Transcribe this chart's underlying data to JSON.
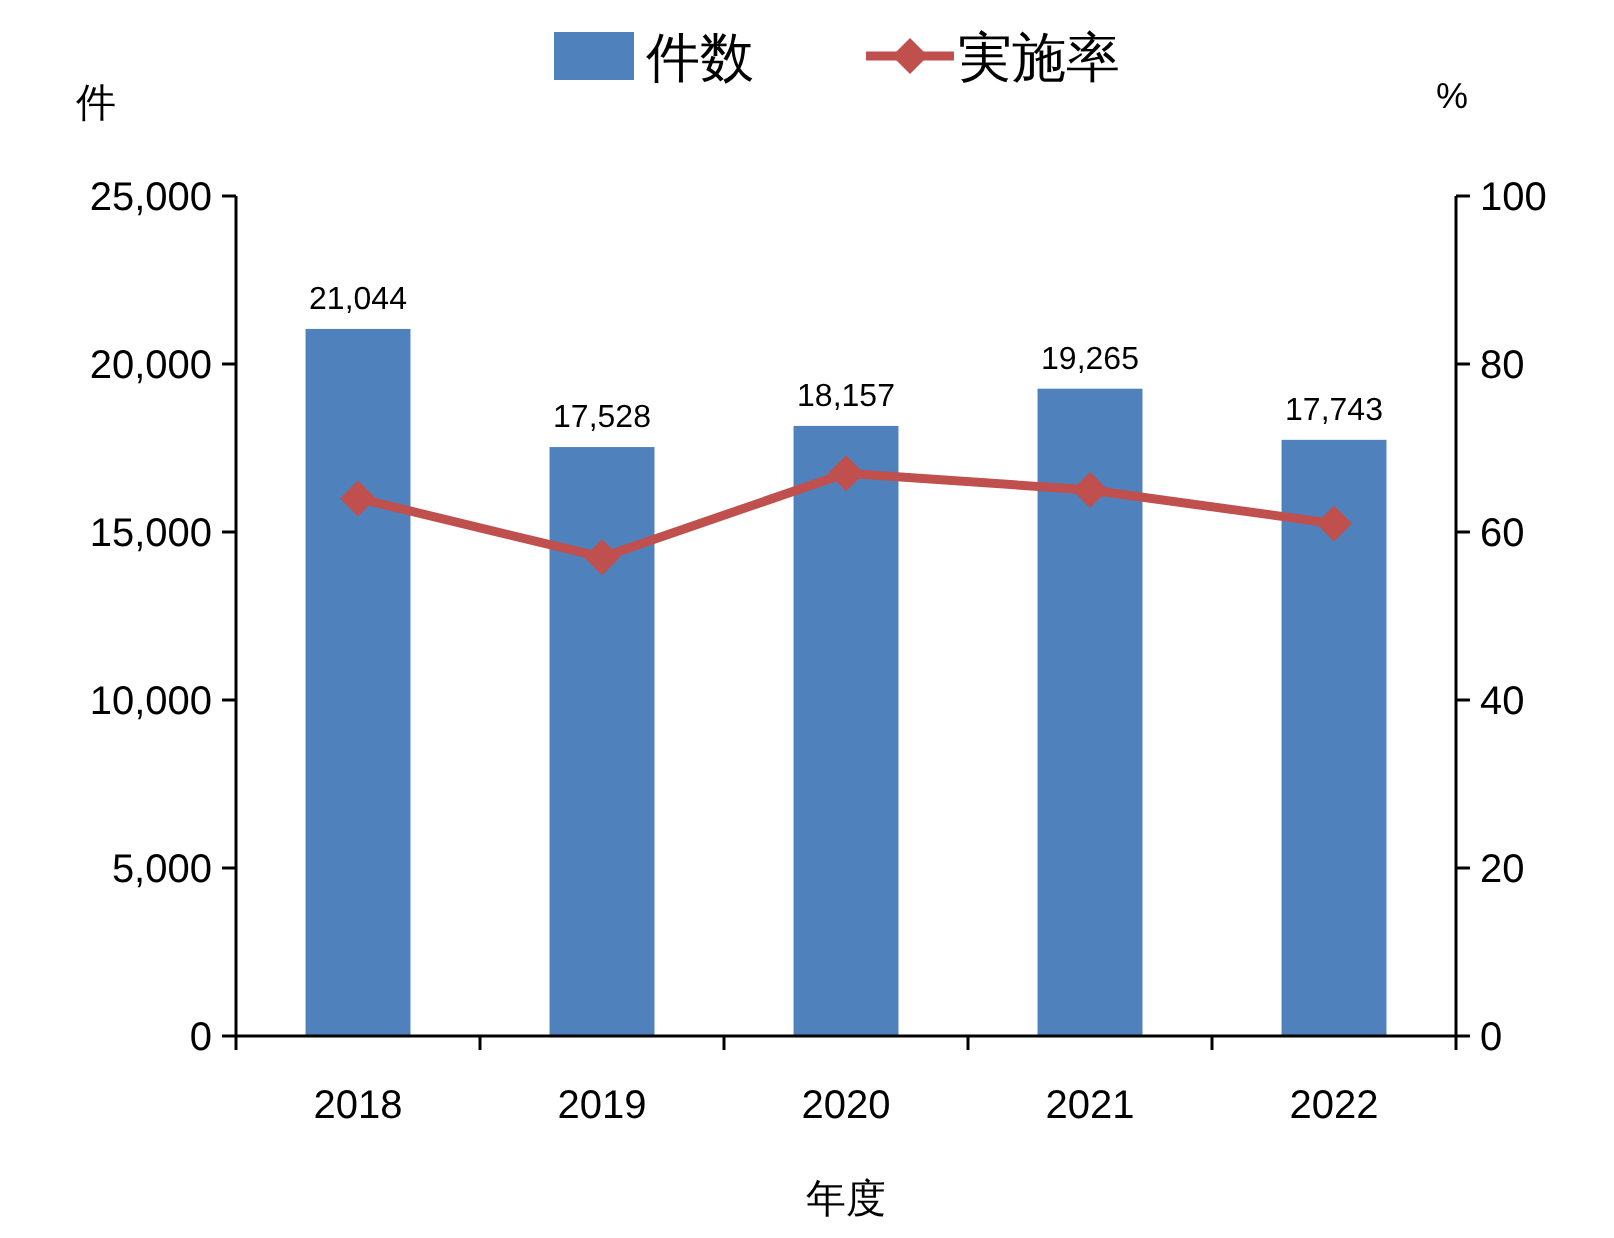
{
  "chart_data": {
    "type": "bar",
    "xlabel": "年度",
    "ylabel": "件",
    "y2label": "%",
    "legend": "top",
    "categories": [
      "2018",
      "2019",
      "2020",
      "2021",
      "2022"
    ],
    "series": [
      {
        "name": "件数",
        "color": "#4f81bd",
        "values": [
          21044,
          17528,
          18157,
          19265,
          17743
        ],
        "value_labels": [
          "21,044",
          "17,528",
          "18,157",
          "19,265",
          "17,743"
        ]
      },
      {
        "name": "実施率",
        "type": "line",
        "axis": "y2",
        "color": "#c0504d",
        "marker": "diamond",
        "values": [
          64,
          57,
          67,
          65,
          61
        ]
      }
    ],
    "ylim": [
      0,
      25000
    ],
    "yticks": [
      0,
      {
        "value": 5000,
        "label": "5,000"
      },
      {
        "value": 10000,
        "label": "10,000"
      },
      {
        "value": 15000,
        "label": "15,000"
      },
      {
        "value": 20000,
        "label": "20,000"
      },
      {
        "value": 25000,
        "label": "25,000"
      }
    ],
    "y2lim": [
      0,
      100
    ],
    "y2ticks": [
      0,
      20,
      40,
      60,
      80,
      100
    ]
  }
}
